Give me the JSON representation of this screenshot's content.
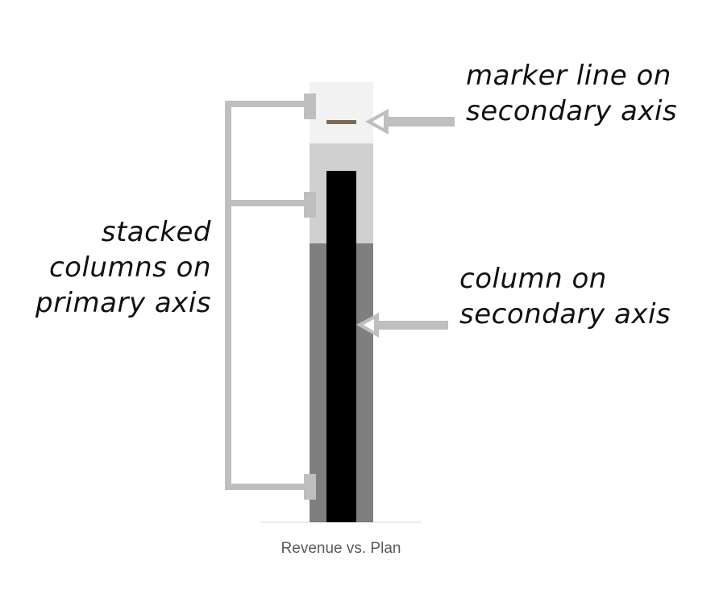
{
  "annotations": {
    "marker_line": {
      "line1": "marker line on",
      "line2": "secondary axis"
    },
    "stacked_columns": {
      "line1": "stacked",
      "line2": "columns on",
      "line3": "primary axis"
    },
    "column_secondary": {
      "line1": "column on",
      "line2": "secondary axis"
    }
  },
  "axis": {
    "category_label": "Revenue vs. Plan"
  },
  "colors": {
    "band_top": "#f2f2f2",
    "band_middle": "#d0d0d0",
    "band_bottom": "#7f7f7f",
    "inner_column": "#000000",
    "marker_line": "#7b6a58",
    "callout": "#bfbfbf"
  }
}
